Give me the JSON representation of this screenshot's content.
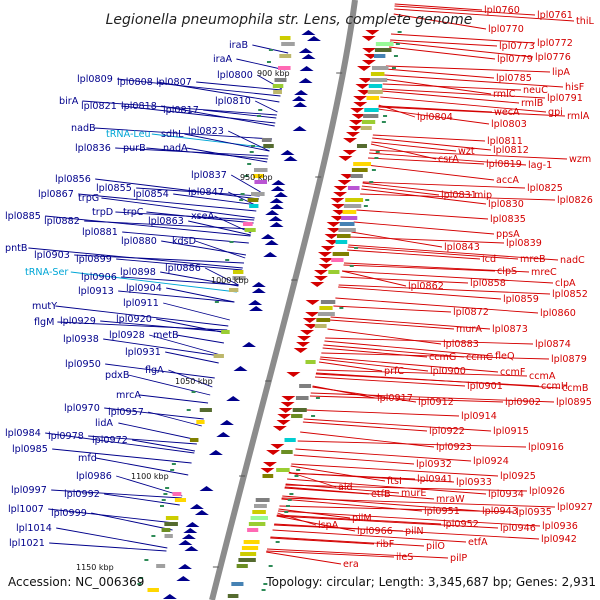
{
  "title": "Legionella pneumophila str. Lens, complete genome",
  "accession": "Accession: NC_006369",
  "topology": "Topology: circular; Length: 3,345,687 bp; Genes: 2,931",
  "colors": {
    "minus_strand": "#00008b",
    "plus_strand": "#d40000",
    "rna": "#00a6d6",
    "backbone": "#8c8c8c"
  },
  "ticks": [
    "900 kbp",
    "950 kbp",
    "1000 kbp",
    "1050 kbp",
    "1100 kbp",
    "1150 kbp"
  ],
  "left_labels": [
    "iraB",
    "iraA",
    "lpl0800",
    "lpl0809",
    "lpl0808",
    "lpl0807",
    "lpl0810",
    "birA",
    "lpl0821",
    "lpl0818",
    "lpl0817",
    "nadB",
    "tRNA-Leu",
    "sdhL",
    "lpl0823",
    "lpl0836",
    "purB",
    "nadA",
    "lpl0837",
    "lpl0856",
    "lpl0855",
    "lpl0854",
    "lpl0847",
    "lpl0867",
    "trpG",
    "trpD",
    "trpC",
    "lpl0863",
    "xseA",
    "lpl0885",
    "lpl0882",
    "lpl0881",
    "lpl0880",
    "kdsD",
    "pntB",
    "lpl0903",
    "lpl0899",
    "lpl0898",
    "lpl0886",
    "tRNA-Ser",
    "lpl0906",
    "lpl0913",
    "lpl0904",
    "lpl0911",
    "mutY",
    "flgM",
    "lpl0929",
    "lpl0920",
    "lpl0938",
    "lpl0928",
    "metB",
    "lpl0931",
    "lpl0950",
    "flgA",
    "pdxB",
    "mrcA",
    "lpl0970",
    "lpl0957",
    "lidA",
    "lpl0984",
    "lpl0978",
    "lpl0972",
    "lpl0985",
    "mfd",
    "lpl0986",
    "lpl0997",
    "lpl0992",
    "lpl1007",
    "lpl0999",
    "lpl1014",
    "lpl1021"
  ],
  "right_labels": [
    "lpl0760",
    "lpl0761",
    "thiL",
    "lpl0770",
    "lpl0773",
    "lpl0772",
    "lpl0779",
    "lpl0776",
    "lipA",
    "lpl0785",
    "hisF",
    "rmlC",
    "neuC",
    "lpl0791",
    "rmlB",
    "gpi",
    "wecA",
    "rmlA",
    "lpl0804",
    "lpl0803",
    "lpl0811",
    "wzt",
    "lpl0812",
    "csrA",
    "lpl0819",
    "wzm",
    "lag-1",
    "accA",
    "lpl0825",
    "lpl0831",
    "mip",
    "lpl0830",
    "lpl0826",
    "lpl0835",
    "ppsA",
    "lpl0843",
    "lpl0839",
    "icd",
    "mreB",
    "nadC",
    "clpS",
    "mreC",
    "clpA",
    "lpl0862",
    "lpl0858",
    "lpl0852",
    "lpl0859",
    "lpl0860",
    "lpl0872",
    "murA",
    "lpl0873",
    "lpl0883",
    "lpl0874",
    "ccmG",
    "ccmC",
    "fleQ",
    "lpl0879",
    "prfC",
    "lpl0900",
    "ccmF",
    "ccmA",
    "lpl0901",
    "ccmH",
    "ccmB",
    "lpl0902",
    "lpl0895",
    "lpl0917",
    "lpl0912",
    "lpl0914",
    "lpl0922",
    "lpl0915",
    "lpl0923",
    "lpl0916",
    "lpl0932",
    "lpl0924",
    "ftsI",
    "lpl0941",
    "lpl0933",
    "lpl0925",
    "ald",
    "etfB",
    "murE",
    "mraW",
    "lpl0934",
    "lpl0926",
    "pilM",
    "lpl0951",
    "lpl0943",
    "lpl0935",
    "lpl0927",
    "lspA",
    "lpl0966",
    "pilN",
    "lpl0952",
    "lpl0946",
    "lpl0936",
    "ribF",
    "pilO",
    "etfA",
    "lpl0942",
    "ileS",
    "pilP",
    "era"
  ]
}
